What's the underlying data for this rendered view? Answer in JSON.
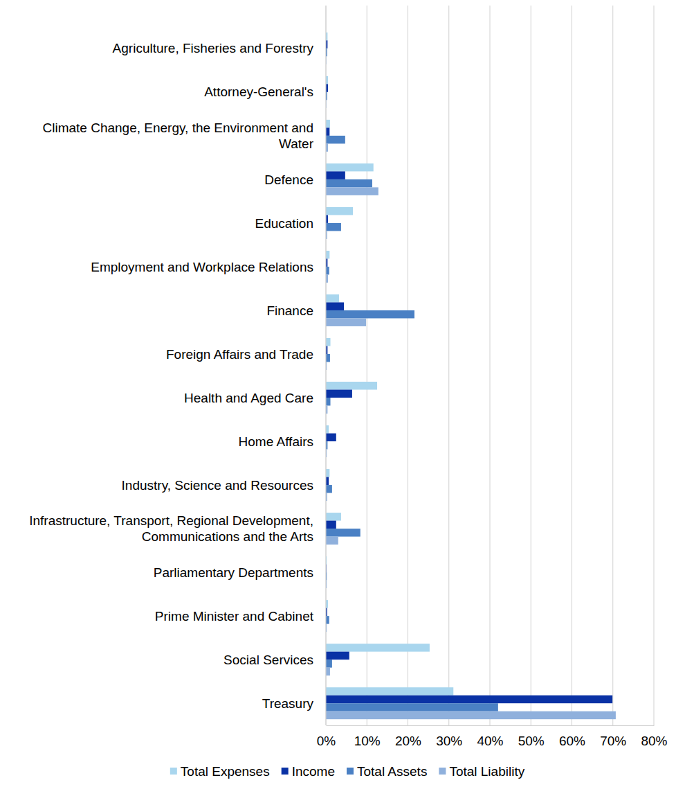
{
  "chart_data": {
    "type": "bar",
    "orientation": "horizontal",
    "categories": [
      "Agriculture, Fisheries and Forestry",
      "Attorney-General's",
      "Climate Change, Energy, the Environment and Water",
      "Defence",
      "Education",
      "Employment and Workplace Relations",
      "Finance",
      "Foreign Affairs and Trade",
      "Health and Aged Care",
      "Home Affairs",
      "Industry, Science and Resources",
      "Infrastructure, Transport, Regional Development, Communications and the Arts",
      "Parliamentary Departments",
      "Prime Minister and Cabinet",
      "Social Services",
      "Treasury"
    ],
    "series": [
      {
        "name": "Total Expenses",
        "color": "#a9d6ee",
        "values": [
          0.4,
          0.5,
          1.0,
          11.6,
          6.6,
          0.9,
          3.2,
          1.1,
          12.5,
          0.7,
          0.9,
          3.7,
          0.2,
          0.5,
          25.3,
          31.1
        ]
      },
      {
        "name": "Income",
        "color": "#0a32a5",
        "values": [
          0.4,
          0.5,
          0.9,
          4.7,
          0.5,
          0.4,
          4.4,
          0.4,
          6.4,
          2.5,
          0.7,
          2.5,
          0.1,
          0.3,
          5.7,
          69.9
        ]
      },
      {
        "name": "Total Assets",
        "color": "#4a80c4",
        "values": [
          0.3,
          0.3,
          4.7,
          11.3,
          3.7,
          0.8,
          21.6,
          1.0,
          1.1,
          0.4,
          1.5,
          8.4,
          0.2,
          0.8,
          1.5,
          42.0
        ]
      },
      {
        "name": "Total Liability",
        "color": "#8fb0dc",
        "values": [
          0.1,
          0.1,
          0.5,
          12.8,
          0.3,
          0.5,
          9.8,
          0.2,
          0.4,
          0.2,
          0.3,
          3.0,
          0.2,
          0.2,
          1.0,
          70.7
        ]
      }
    ],
    "xlim": [
      0,
      80
    ],
    "xticks": [
      {
        "value": 0,
        "label": "0%"
      },
      {
        "value": 10,
        "label": "10%"
      },
      {
        "value": 20,
        "label": "20%"
      },
      {
        "value": 30,
        "label": "30%"
      },
      {
        "value": 40,
        "label": "40%"
      },
      {
        "value": 50,
        "label": "50%"
      },
      {
        "value": 60,
        "label": "60%"
      },
      {
        "value": 70,
        "label": "70%"
      },
      {
        "value": 80,
        "label": "80%"
      }
    ],
    "grid": true,
    "legend": "bottom"
  }
}
